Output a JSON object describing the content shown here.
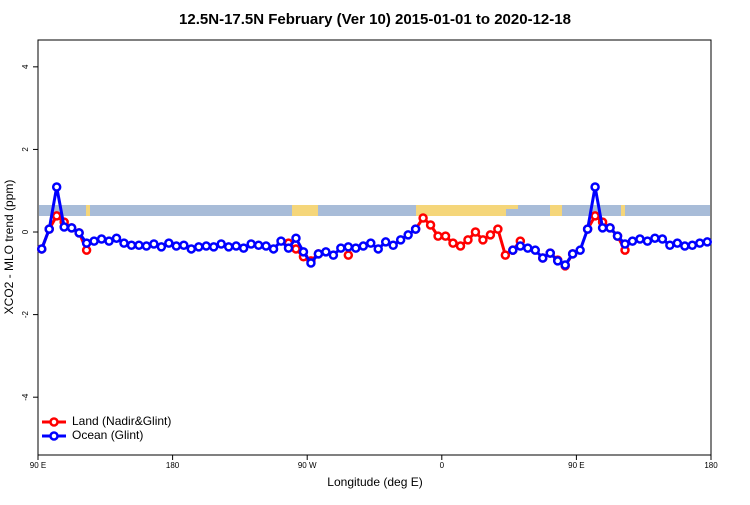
{
  "chart_data": {
    "type": "line",
    "title": "12.5N-17.5N February (Ver 10)   2015-01-01 to 2020-12-18",
    "xlabel": "Longitude (deg E)",
    "ylabel": "XCO2 - MLO trend (ppm)",
    "xlim": [
      90,
      540
    ],
    "xticks": [
      {
        "value": 90,
        "label": "90 E"
      },
      180,
      {
        "value": 270,
        "label": "90 W"
      },
      {
        "value": 360,
        "label": "0"
      },
      {
        "value": 450,
        "label": "90 E"
      },
      {
        "value": 540,
        "label": "180"
      }
    ],
    "ylim": [
      -5.4,
      4.65
    ],
    "yticks": [
      -4,
      -2,
      0,
      2,
      4
    ],
    "legend": "bottom-left",
    "series": [
      {
        "name": "Land (Nadir&Glint)",
        "color": "#ff0000",
        "x": [
          92.5,
          97.5,
          102.5,
          107.5,
          112.5,
          117.5,
          122.5,
          127.5,
          257.5,
          262.5,
          267.5,
          272.5,
          277.5,
          282.5,
          297.5,
          302.5,
          342.5,
          347.5,
          352.5,
          357.5,
          362.5,
          367.5,
          372.5,
          377.5,
          382.5,
          387.5,
          392.5,
          397.5,
          402.5,
          407.5,
          412.5,
          417.5,
          427.5,
          432.5,
          437.5,
          442.5,
          447.5,
          452.5,
          457.5,
          462.5,
          467.5,
          472.5,
          477.5,
          482.5
        ],
        "values": [
          -0.41,
          0.07,
          0.39,
          0.24,
          0.1,
          -0.02,
          -0.44,
          null,
          -0.27,
          -0.41,
          -0.6,
          -0.7,
          -0.53,
          null,
          -0.56,
          null,
          0.07,
          0.34,
          0.17,
          -0.1,
          -0.1,
          -0.27,
          -0.34,
          -0.19,
          0,
          -0.19,
          -0.07,
          0.07,
          -0.56,
          -0.44,
          -0.22,
          null,
          -0.63,
          -0.51,
          -0.68,
          -0.82,
          -0.53,
          null,
          0.07,
          0.39,
          0.24,
          0.1,
          -0.1,
          -0.44
        ]
      },
      {
        "name": "Ocean (Glint)",
        "color": "#0000ff",
        "x": [
          92.5,
          97.5,
          102.5,
          107.5,
          112.5,
          117.5,
          122.5,
          127.5,
          132.5,
          137.5,
          142.5,
          147.5,
          152.5,
          157.5,
          162.5,
          167.5,
          172.5,
          177.5,
          182.5,
          187.5,
          192.5,
          197.5,
          202.5,
          207.5,
          212.5,
          217.5,
          222.5,
          227.5,
          232.5,
          237.5,
          242.5,
          247.5,
          252.5,
          257.5,
          262.5,
          267.5,
          272.5,
          277.5,
          282.5,
          287.5,
          292.5,
          297.5,
          302.5,
          307.5,
          312.5,
          317.5,
          322.5,
          327.5,
          332.5,
          337.5,
          342.5,
          347.5,
          407.5,
          412.5,
          417.5,
          422.5,
          427.5,
          432.5,
          437.5,
          442.5,
          447.5,
          452.5,
          457.5,
          462.5,
          467.5,
          472.5,
          477.5,
          482.5,
          487.5,
          492.5,
          497.5,
          502.5,
          507.5,
          512.5,
          517.5,
          522.5,
          527.5,
          532.5,
          537.5
        ],
        "values": [
          -0.41,
          0.07,
          1.09,
          0.12,
          0.1,
          -0.02,
          -0.27,
          -0.22,
          -0.17,
          -0.22,
          -0.15,
          -0.27,
          -0.32,
          -0.32,
          -0.34,
          -0.29,
          -0.36,
          -0.27,
          -0.34,
          -0.32,
          -0.41,
          -0.36,
          -0.34,
          -0.36,
          -0.29,
          -0.36,
          -0.34,
          -0.39,
          -0.29,
          -0.32,
          -0.34,
          -0.41,
          -0.22,
          -0.39,
          -0.15,
          -0.48,
          -0.75,
          -0.53,
          -0.48,
          -0.56,
          -0.39,
          -0.36,
          -0.39,
          -0.34,
          -0.27,
          -0.41,
          -0.24,
          -0.32,
          -0.19,
          -0.07,
          0.07,
          null,
          -0.44,
          -0.34,
          -0.39,
          -0.44,
          -0.63,
          -0.51,
          -0.7,
          -0.8,
          -0.53,
          -0.44,
          0.07,
          1.09,
          0.1,
          0.1,
          -0.1,
          -0.29,
          -0.22,
          -0.17,
          -0.22,
          -0.15,
          -0.17,
          -0.32,
          -0.27,
          -0.34,
          -0.32,
          -0.27,
          -0.24
        ]
      }
    ]
  }
}
